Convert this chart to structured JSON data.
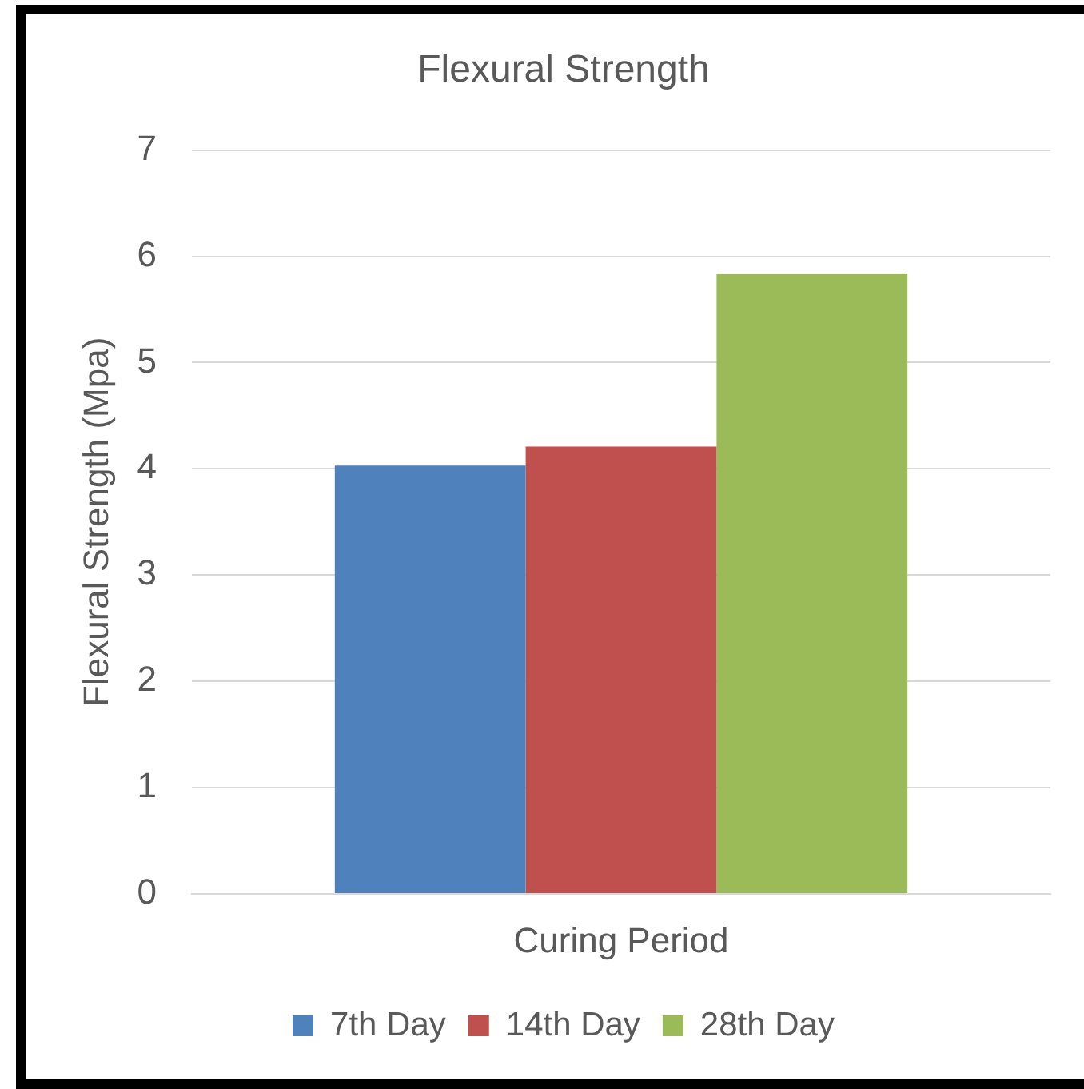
{
  "chart_data": {
    "type": "bar",
    "title": "Flexural Strength",
    "ylabel": "Flexural Strength (Mpa)",
    "categories": [
      "Curing Period"
    ],
    "series": [
      {
        "name": "7th Day",
        "color": "#4f81bd",
        "values": [
          4.03
        ]
      },
      {
        "name": "14th Day",
        "color": "#c0504d",
        "values": [
          4.21
        ]
      },
      {
        "name": "28th Day",
        "color": "#9bbb59",
        "values": [
          5.83
        ]
      }
    ],
    "ylim": [
      0,
      7
    ],
    "yticks": [
      0,
      1,
      2,
      3,
      4,
      5,
      6,
      7
    ],
    "grid": "y",
    "legend": "bottom"
  }
}
